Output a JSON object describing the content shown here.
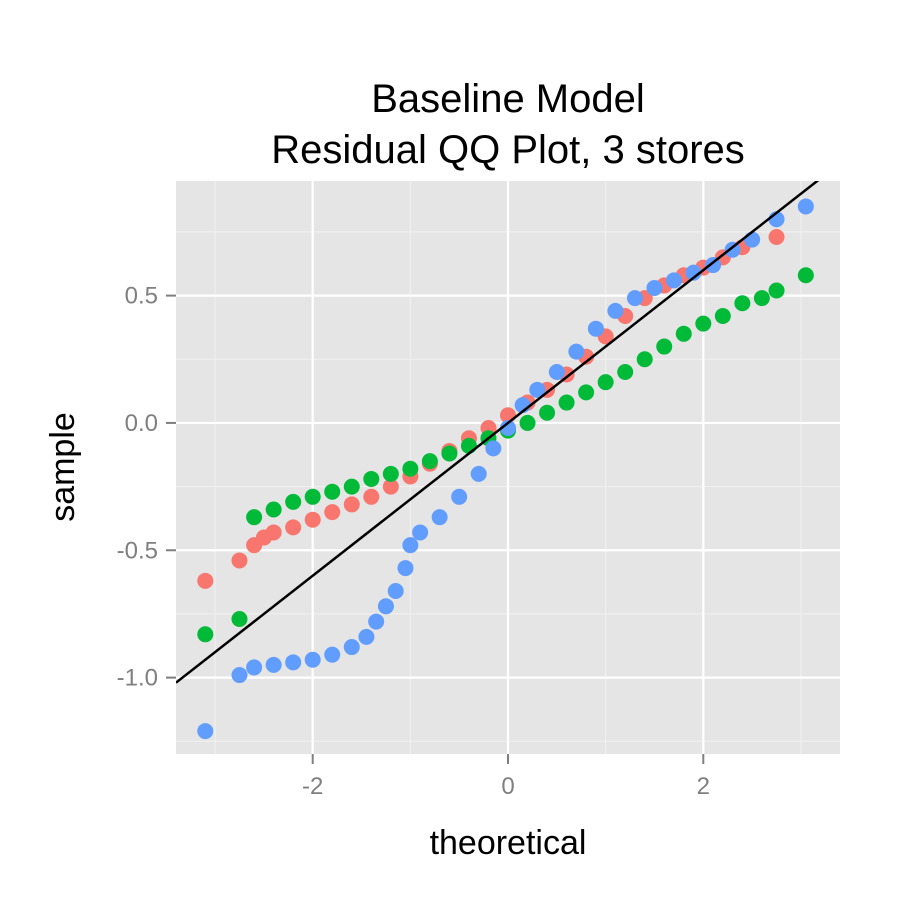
{
  "chart_data": {
    "type": "scatter",
    "title": "Baseline Model\nResidual QQ Plot, 3 stores",
    "title_lines": [
      "Baseline Model",
      "Residual QQ Plot, 3 stores"
    ],
    "xlabel": "theoretical",
    "ylabel": "sample",
    "xlim": [
      -3.4,
      3.4
    ],
    "ylim": [
      -1.3,
      0.95
    ],
    "x_ticks": [
      -2,
      0,
      2
    ],
    "x_tick_labels": [
      "-2",
      "0",
      "2"
    ],
    "y_ticks": [
      -1.0,
      -0.5,
      0.0,
      0.5
    ],
    "y_tick_labels": [
      "-1.0",
      "-0.5",
      "0.0",
      "0.5"
    ],
    "grid": true,
    "legend": "none",
    "panel_background": "#e5e5e5",
    "reference_line": {
      "slope": 0.3,
      "intercept": 0.0,
      "color": "#000000"
    },
    "series": [
      {
        "color": "#F8766D",
        "points": [
          [
            -3.1,
            -0.62
          ],
          [
            -2.75,
            -0.54
          ],
          [
            -2.6,
            -0.48
          ],
          [
            -2.5,
            -0.45
          ],
          [
            -2.4,
            -0.43
          ],
          [
            -2.2,
            -0.41
          ],
          [
            -2.0,
            -0.38
          ],
          [
            -1.8,
            -0.35
          ],
          [
            -1.6,
            -0.32
          ],
          [
            -1.4,
            -0.29
          ],
          [
            -1.2,
            -0.25
          ],
          [
            -1.0,
            -0.21
          ],
          [
            -0.8,
            -0.16
          ],
          [
            -0.6,
            -0.11
          ],
          [
            -0.4,
            -0.06
          ],
          [
            -0.2,
            -0.02
          ],
          [
            0.0,
            0.03
          ],
          [
            0.2,
            0.08
          ],
          [
            0.4,
            0.13
          ],
          [
            0.6,
            0.19
          ],
          [
            0.8,
            0.26
          ],
          [
            1.0,
            0.34
          ],
          [
            1.2,
            0.42
          ],
          [
            1.4,
            0.49
          ],
          [
            1.6,
            0.54
          ],
          [
            1.8,
            0.58
          ],
          [
            2.0,
            0.61
          ],
          [
            2.2,
            0.65
          ],
          [
            2.4,
            0.69
          ],
          [
            2.75,
            0.73
          ]
        ]
      },
      {
        "color": "#00BA38",
        "points": [
          [
            -3.1,
            -0.83
          ],
          [
            -2.75,
            -0.77
          ],
          [
            -2.6,
            -0.37
          ],
          [
            -2.4,
            -0.34
          ],
          [
            -2.2,
            -0.31
          ],
          [
            -2.0,
            -0.29
          ],
          [
            -1.8,
            -0.27
          ],
          [
            -1.6,
            -0.25
          ],
          [
            -1.4,
            -0.22
          ],
          [
            -1.2,
            -0.2
          ],
          [
            -1.0,
            -0.18
          ],
          [
            -0.8,
            -0.15
          ],
          [
            -0.6,
            -0.12
          ],
          [
            -0.4,
            -0.09
          ],
          [
            -0.2,
            -0.06
          ],
          [
            0.0,
            -0.03
          ],
          [
            0.2,
            0.0
          ],
          [
            0.4,
            0.04
          ],
          [
            0.6,
            0.08
          ],
          [
            0.8,
            0.12
          ],
          [
            1.0,
            0.16
          ],
          [
            1.2,
            0.2
          ],
          [
            1.4,
            0.25
          ],
          [
            1.6,
            0.3
          ],
          [
            1.8,
            0.35
          ],
          [
            2.0,
            0.39
          ],
          [
            2.2,
            0.42
          ],
          [
            2.4,
            0.47
          ],
          [
            2.6,
            0.49
          ],
          [
            2.75,
            0.52
          ],
          [
            3.05,
            0.58
          ]
        ]
      },
      {
        "color": "#619CFF",
        "points": [
          [
            -3.1,
            -1.21
          ],
          [
            -2.75,
            -0.99
          ],
          [
            -2.6,
            -0.96
          ],
          [
            -2.4,
            -0.95
          ],
          [
            -2.2,
            -0.94
          ],
          [
            -2.0,
            -0.93
          ],
          [
            -1.8,
            -0.91
          ],
          [
            -1.6,
            -0.88
          ],
          [
            -1.45,
            -0.84
          ],
          [
            -1.35,
            -0.78
          ],
          [
            -1.25,
            -0.72
          ],
          [
            -1.15,
            -0.66
          ],
          [
            -1.05,
            -0.57
          ],
          [
            -1.0,
            -0.48
          ],
          [
            -0.9,
            -0.43
          ],
          [
            -0.7,
            -0.37
          ],
          [
            -0.5,
            -0.29
          ],
          [
            -0.3,
            -0.2
          ],
          [
            -0.15,
            -0.1
          ],
          [
            0.0,
            -0.02
          ],
          [
            0.15,
            0.07
          ],
          [
            0.3,
            0.13
          ],
          [
            0.5,
            0.2
          ],
          [
            0.7,
            0.28
          ],
          [
            0.9,
            0.37
          ],
          [
            1.1,
            0.44
          ],
          [
            1.3,
            0.49
          ],
          [
            1.5,
            0.53
          ],
          [
            1.7,
            0.56
          ],
          [
            1.9,
            0.59
          ],
          [
            2.1,
            0.62
          ],
          [
            2.3,
            0.68
          ],
          [
            2.5,
            0.72
          ],
          [
            2.75,
            0.8
          ],
          [
            3.05,
            0.85
          ]
        ]
      }
    ]
  }
}
